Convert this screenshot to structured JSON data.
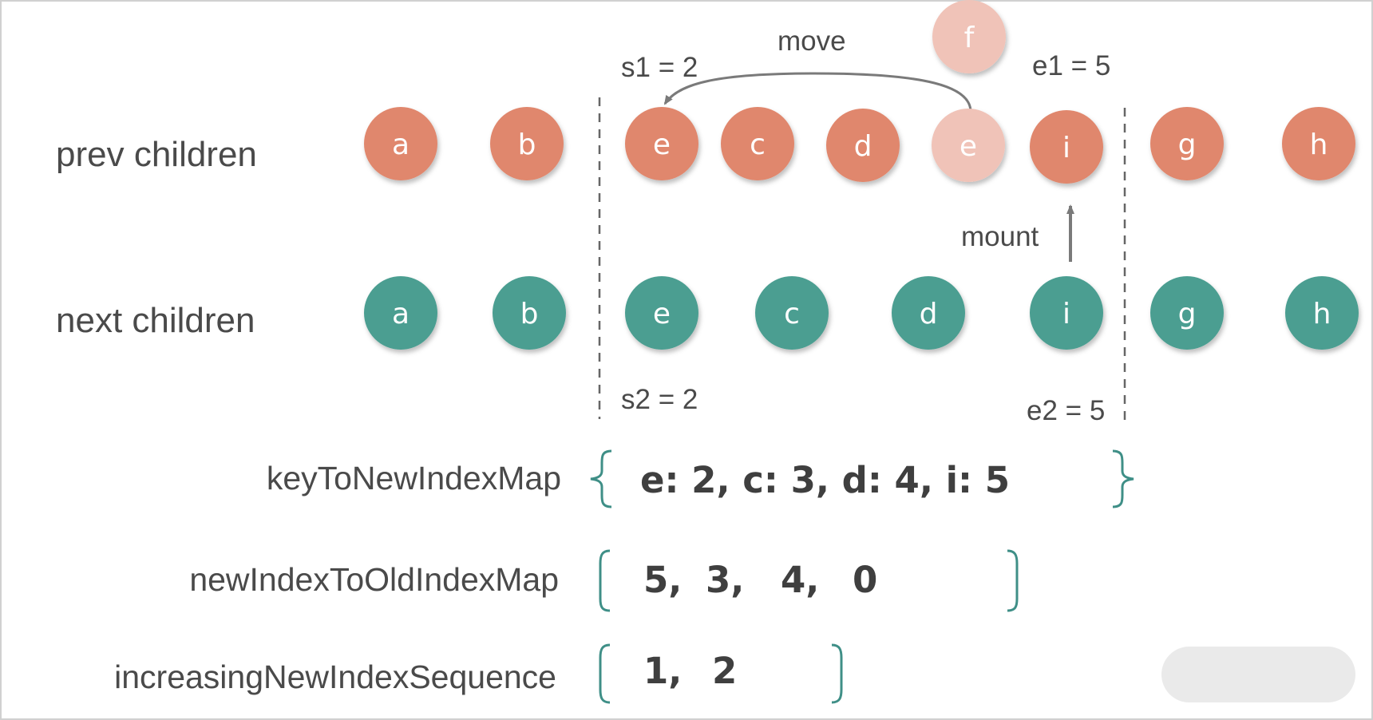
{
  "colors": {
    "prev_node": "#e0876d",
    "prev_node_faded": "#f0c3b8",
    "next_node": "#4b9e91",
    "bracket": "#3f8f87",
    "text": "#4a4a4a",
    "arrow": "#7a7a7a"
  },
  "rows": {
    "prev_label": "prev children",
    "next_label": "next children"
  },
  "prev_nodes": [
    {
      "key": "a",
      "faded": false
    },
    {
      "key": "b",
      "faded": false
    },
    {
      "key": "e",
      "faded": false
    },
    {
      "key": "c",
      "faded": false
    },
    {
      "key": "d",
      "faded": false
    },
    {
      "key": "e",
      "faded": true
    },
    {
      "key": "i",
      "faded": false
    },
    {
      "key": "g",
      "faded": false
    },
    {
      "key": "h",
      "faded": false
    }
  ],
  "next_nodes": [
    {
      "key": "a"
    },
    {
      "key": "b"
    },
    {
      "key": "e"
    },
    {
      "key": "c"
    },
    {
      "key": "d"
    },
    {
      "key": "i"
    },
    {
      "key": "g"
    },
    {
      "key": "h"
    }
  ],
  "removed_node": {
    "key": "f"
  },
  "markers": {
    "s1": "s1 = 2",
    "e1": "e1 = 5",
    "s2": "s2 = 2",
    "e2": "e2 = 5"
  },
  "actions": {
    "move": "move",
    "mount": "mount"
  },
  "maps": {
    "key_to_new_index": {
      "label": "keyToNewIndexMap",
      "value": "e: 2, c: 3, d: 4, i: 5"
    },
    "new_index_to_old_index": {
      "label": "newIndexToOldIndexMap",
      "values": [
        "5,",
        "3,",
        "4,",
        "0"
      ]
    },
    "increasing_new_index_sequence": {
      "label": "increasingNewIndexSequence",
      "values": [
        "1,",
        "2"
      ]
    }
  }
}
